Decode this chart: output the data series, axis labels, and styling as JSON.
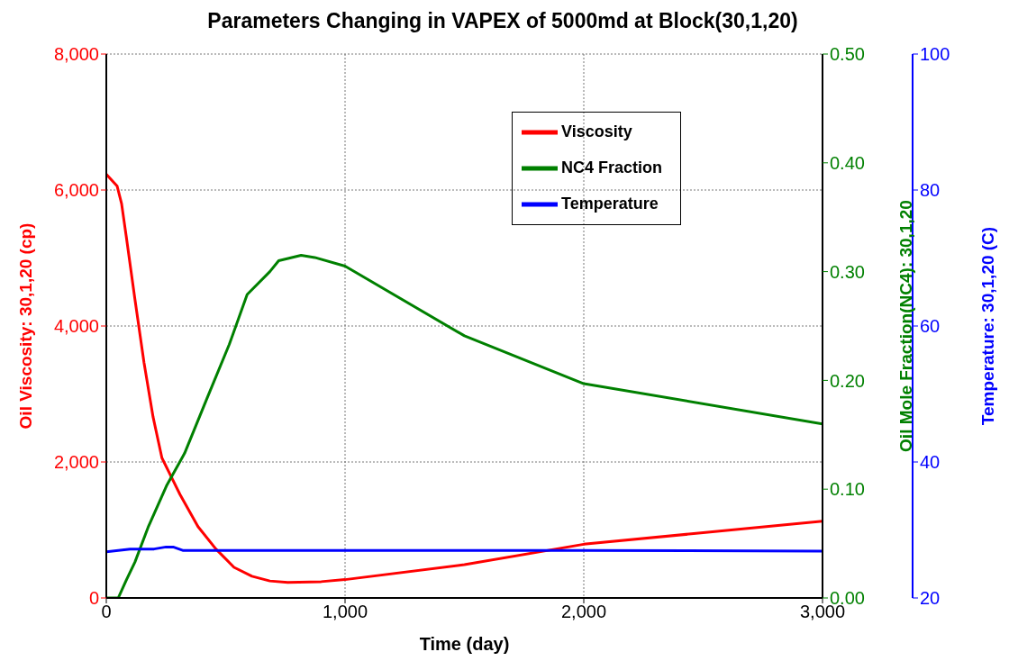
{
  "chart_data": {
    "type": "line",
    "title": "Parameters Changing in VAPEX of 5000md at Block(30,1,20)",
    "xlabel": "Time (day)",
    "ylabel": "Oil Viscosity: 30,1,20 (cp)",
    "y2label": "Oil Mole Fraction(NC4): 30,1,20",
    "y3label": "Temperature: 30,1,20 (C)",
    "xlim": [
      0,
      3000
    ],
    "xticks": [
      0,
      {
        "value": 1000,
        "label": "1,000"
      },
      {
        "value": 2000,
        "label": "2,000"
      },
      {
        "value": 3000,
        "label": "3,000"
      }
    ],
    "ylim": [
      0,
      8000
    ],
    "yticks": [
      0,
      {
        "value": 2000,
        "label": "2,000"
      },
      {
        "value": 4000,
        "label": "4,000"
      },
      {
        "value": 6000,
        "label": "6,000"
      },
      {
        "value": 8000,
        "label": "8,000"
      }
    ],
    "y2lim": [
      0,
      0.5
    ],
    "y2ticks": [
      {
        "value": 0,
        "label": "0.00"
      },
      {
        "value": 0.1,
        "label": "0.10"
      },
      {
        "value": 0.2,
        "label": "0.20"
      },
      {
        "value": 0.3,
        "label": "0.30"
      },
      {
        "value": 0.4,
        "label": "0.40"
      },
      {
        "value": 0.5,
        "label": "0.50"
      }
    ],
    "y3lim": [
      20,
      100
    ],
    "y3ticks": [
      20,
      40,
      60,
      80,
      100
    ],
    "grid": true,
    "legend": "top right",
    "series": [
      {
        "name": "Viscosity",
        "color": "#ff0000",
        "x": [
          0,
          45,
          64,
          83,
          120,
          158,
          196,
          233,
          271,
          309,
          384,
          459,
          535,
          610,
          685,
          760,
          900,
          1000,
          1500,
          2000,
          2500,
          3000
        ],
        "values": [
          6230,
          6060,
          5800,
          5330,
          4390,
          3460,
          2660,
          2060,
          1790,
          1520,
          1050,
          720,
          450,
          320,
          250,
          230,
          240,
          270,
          490,
          790,
          960,
          1130
        ]
      },
      {
        "name": "NC4 Fraction",
        "color": "#008000",
        "axis": "y2",
        "x": [
          0,
          50,
          83,
          120,
          177,
          252,
          328,
          421,
          515,
          590,
          685,
          722,
          816,
          873,
          1000,
          1500,
          2000,
          3000
        ],
        "values": [
          0,
          0,
          0.016,
          0.033,
          0.066,
          0.103,
          0.133,
          0.183,
          0.233,
          0.279,
          0.3,
          0.31,
          0.315,
          0.313,
          0.305,
          0.241,
          0.197,
          0.16
        ]
      },
      {
        "name": "Temperature",
        "color": "#0000ff",
        "axis": "y3",
        "x": [
          0,
          100,
          200,
          250,
          280,
          320,
          1000,
          2000,
          3000
        ],
        "values": [
          26.8,
          27.2,
          27.2,
          27.5,
          27.5,
          27.0,
          27.0,
          27.0,
          26.9
        ]
      }
    ]
  }
}
